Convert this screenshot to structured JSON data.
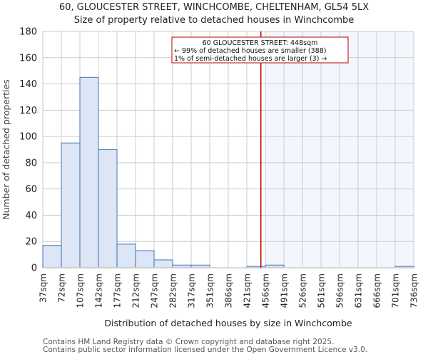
{
  "header": {
    "title": "60, GLOUCESTER STREET, WINCHCOMBE, CHELTENHAM, GL54 5LX",
    "subtitle": "Size of property relative to detached houses in Winchcombe"
  },
  "annotation": {
    "line1": "60 GLOUCESTER STREET: 448sqm",
    "line2": "← 99% of detached houses are smaller (388)",
    "line3": "1% of semi-detached houses are larger (3) →"
  },
  "footer": {
    "line1": "Contains HM Land Registry data © Crown copyright and database right 2025.",
    "line2": "Contains public sector information licensed under the Open Government Licence v3.0."
  },
  "colors": {
    "bar_fill": "#dce6f4",
    "bar_edge": "#5b8ac6",
    "marker": "#c00000",
    "shade": "#f3f6fd",
    "grid": "#cccccc"
  },
  "chart_data": {
    "type": "bar",
    "title": "60, GLOUCESTER STREET, WINCHCOMBE, CHELTENHAM, GL54 5LX",
    "subtitle": "Size of property relative to detached houses in Winchcombe",
    "xlabel": "Distribution of detached houses by size in Winchcombe",
    "ylabel": "Number of detached properties",
    "bin_edges": [
      "37sqm",
      "72sqm",
      "107sqm",
      "142sqm",
      "177sqm",
      "212sqm",
      "247sqm",
      "282sqm",
      "317sqm",
      "351sqm",
      "386sqm",
      "421sqm",
      "456sqm",
      "491sqm",
      "526sqm",
      "561sqm",
      "596sqm",
      "631sqm",
      "666sqm",
      "701sqm",
      "736sqm"
    ],
    "values": [
      17,
      95,
      145,
      90,
      18,
      13,
      6,
      2,
      2,
      0,
      0,
      1,
      2,
      0,
      0,
      0,
      0,
      0,
      0,
      1
    ],
    "yticks": [
      0,
      20,
      40,
      60,
      80,
      100,
      120,
      140,
      160,
      180
    ],
    "ylim": [
      0,
      180
    ],
    "grid": true,
    "marker": {
      "value_sqm": 448,
      "label": "60 GLOUCESTER STREET: 448sqm"
    },
    "shaded_region_start_sqm": 456
  }
}
